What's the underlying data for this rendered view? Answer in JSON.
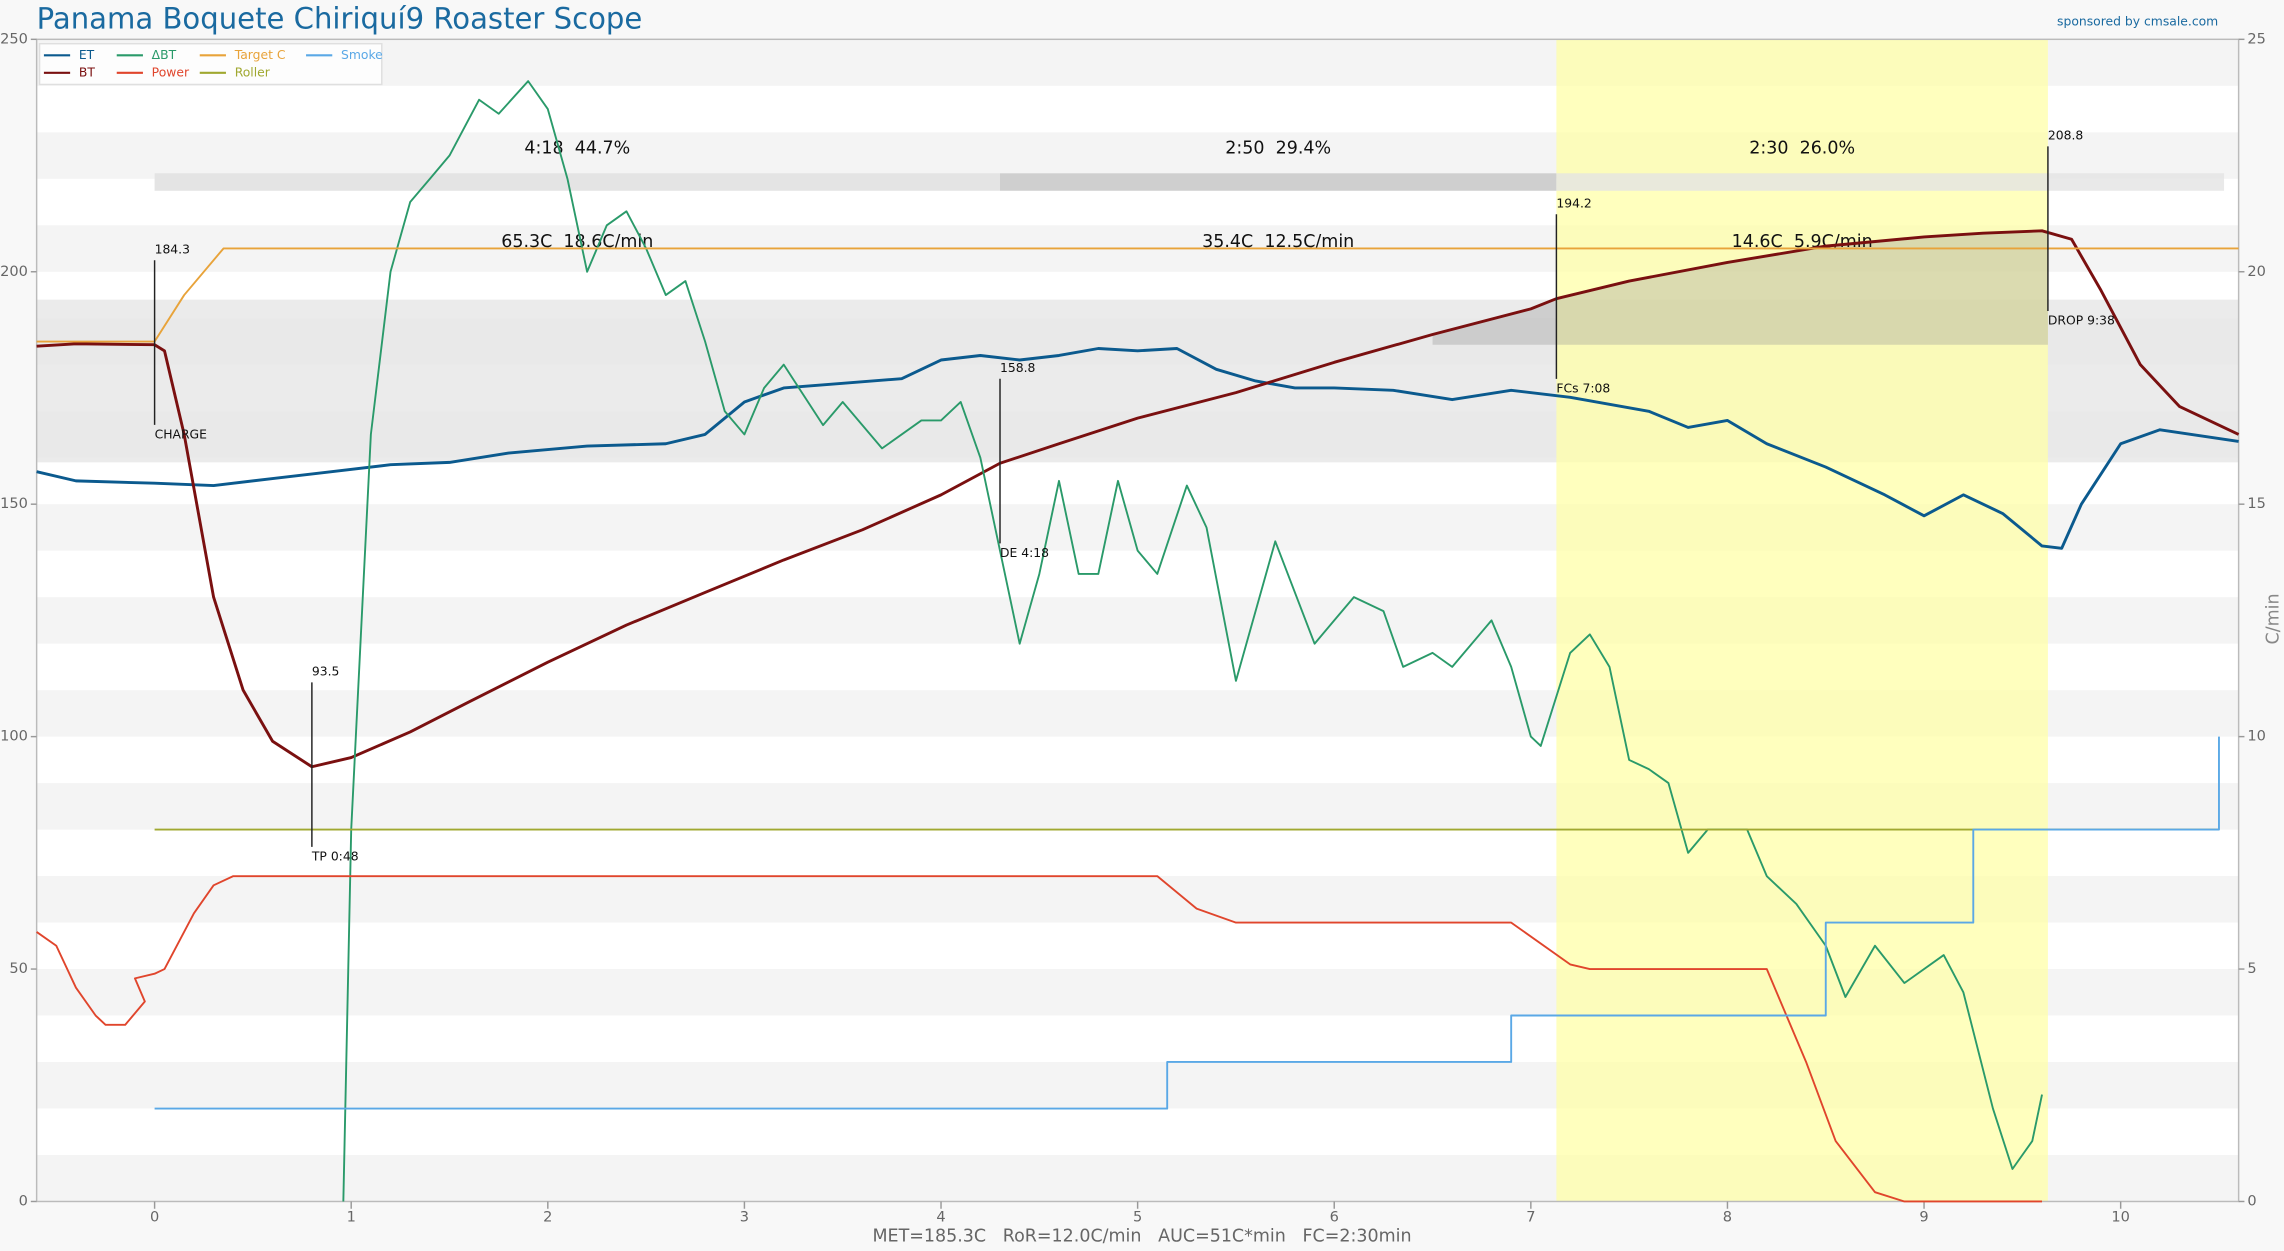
{
  "chart_data": {
    "type": "line",
    "title": "Panama Boquete Chiriquí9 Roaster Scope",
    "subtitle": "sponsored by cmsale.com",
    "footer": "MET=185.3C   RoR=12.0C/min   AUC=51C*min   FC=2:30min",
    "y2label": "C/min",
    "xlim": [
      -0.6,
      10.6
    ],
    "xticks": [
      0,
      1,
      2,
      3,
      4,
      5,
      6,
      7,
      8,
      9,
      10
    ],
    "ylim": [
      0,
      250
    ],
    "yticks": [
      0,
      50,
      100,
      150,
      200,
      250
    ],
    "y2lim": [
      0,
      25
    ],
    "y2ticks": [
      0,
      5,
      10,
      15,
      20,
      25
    ],
    "legend": "top-left",
    "shaded_range": [
      159,
      194
    ],
    "series": [
      {
        "name": "ET",
        "color": "#0b5a8e",
        "x": [
          -0.6,
          -0.4,
          0,
          0.3,
          0.6,
          0.9,
          1.2,
          1.5,
          1.8,
          2.2,
          2.6,
          2.8,
          3.0,
          3.2,
          3.5,
          3.8,
          4.0,
          4.2,
          4.4,
          4.6,
          4.8,
          5.0,
          5.2,
          5.4,
          5.6,
          5.8,
          6.0,
          6.3,
          6.6,
          6.9,
          7.2,
          7.4,
          7.6,
          7.8,
          8.0,
          8.2,
          8.5,
          8.8,
          9.0,
          9.2,
          9.4,
          9.6,
          9.7,
          9.8,
          10.0,
          10.2,
          10.6
        ],
        "values": [
          157,
          155,
          154.5,
          154,
          155.5,
          157,
          158.5,
          159,
          161,
          162.5,
          163,
          165,
          172,
          175,
          176,
          177,
          181,
          182,
          181,
          182,
          183.5,
          183,
          183.5,
          179,
          176.5,
          175,
          175,
          174.5,
          172.5,
          174.5,
          173,
          171.5,
          170,
          166.5,
          168,
          163,
          158,
          152,
          147.5,
          152,
          148,
          141,
          140.5,
          150,
          163,
          166,
          163.5
        ]
      },
      {
        "name": "BT",
        "color": "#7a1010",
        "x": [
          -0.6,
          -0.4,
          0,
          0.05,
          0.15,
          0.3,
          0.45,
          0.6,
          0.8,
          1.0,
          1.3,
          1.6,
          2.0,
          2.4,
          2.8,
          3.2,
          3.6,
          4.0,
          4.3,
          4.6,
          5.0,
          5.5,
          6.0,
          6.5,
          7.0,
          7.13,
          7.5,
          8.0,
          8.5,
          9.0,
          9.3,
          9.6,
          9.75,
          9.9,
          10.1,
          10.3,
          10.6
        ],
        "values": [
          184,
          184.5,
          184.3,
          183,
          165,
          130,
          110,
          99,
          93.5,
          95.5,
          101,
          107.5,
          116,
          124,
          131,
          138,
          144.5,
          152,
          158.8,
          163,
          168.5,
          174,
          180.5,
          186.5,
          192,
          194.2,
          198,
          202,
          205.5,
          207.5,
          208.3,
          208.8,
          207,
          196,
          180,
          171,
          165
        ]
      },
      {
        "name": "ΔBT",
        "color": "#2a9a6a",
        "axis": "y2",
        "x": [
          0.96,
          1.0,
          1.1,
          1.2,
          1.3,
          1.4,
          1.5,
          1.65,
          1.75,
          1.9,
          2.0,
          2.1,
          2.2,
          2.3,
          2.4,
          2.5,
          2.6,
          2.7,
          2.8,
          2.9,
          3.0,
          3.1,
          3.2,
          3.4,
          3.5,
          3.7,
          3.9,
          4.0,
          4.1,
          4.2,
          4.3,
          4.4,
          4.5,
          4.6,
          4.7,
          4.8,
          4.9,
          5.0,
          5.1,
          5.25,
          5.35,
          5.5,
          5.7,
          5.9,
          6.0,
          6.1,
          6.25,
          6.35,
          6.5,
          6.6,
          6.8,
          6.9,
          7.0,
          7.05,
          7.2,
          7.3,
          7.4,
          7.5,
          7.6,
          7.7,
          7.8,
          7.9,
          8.1,
          8.2,
          8.35,
          8.5,
          8.6,
          8.75,
          8.9,
          9.1,
          9.2,
          9.35,
          9.45,
          9.55,
          9.6
        ],
        "values": [
          0,
          8,
          16.5,
          20,
          21.5,
          22,
          22.5,
          23.7,
          23.4,
          24.1,
          23.5,
          22,
          20,
          21,
          21.3,
          20.5,
          19.5,
          19.8,
          18.5,
          17,
          16.5,
          17.5,
          18,
          16.7,
          17.2,
          16.2,
          16.8,
          16.8,
          17.2,
          16,
          14,
          12,
          13.5,
          15.5,
          13.5,
          13.5,
          15.5,
          14,
          13.5,
          15.4,
          14.5,
          11.2,
          14.2,
          12,
          12.5,
          13,
          12.7,
          11.5,
          11.8,
          11.5,
          12.5,
          11.5,
          10,
          9.8,
          11.8,
          12.2,
          11.5,
          9.5,
          9.3,
          9,
          7.5,
          8,
          8,
          7,
          6.4,
          5.5,
          4.4,
          5.5,
          4.7,
          5.3,
          4.5,
          2,
          0.7,
          1.3,
          2.3
        ]
      },
      {
        "name": "Power",
        "color": "#e0452c",
        "x": [
          -0.6,
          -0.5,
          -0.4,
          -0.3,
          -0.25,
          -0.15,
          -0.05,
          -0.1,
          0,
          0.05,
          0.2,
          0.3,
          0.4,
          5.1,
          5.3,
          5.5,
          6.9,
          7.2,
          7.3,
          8.2,
          8.4,
          8.55,
          8.75,
          8.9,
          9.6
        ],
        "values": [
          58,
          55,
          46,
          40,
          38,
          38,
          43,
          48,
          49,
          50,
          62,
          68,
          70,
          70,
          63,
          60,
          60,
          51,
          50,
          50,
          30,
          13,
          2,
          0,
          0
        ]
      },
      {
        "name": "Target C",
        "color": "#e8a33a",
        "x": [
          -0.6,
          0,
          0.15,
          0.35,
          10.6
        ],
        "values": [
          185,
          185,
          195,
          205,
          205
        ]
      },
      {
        "name": "Roller",
        "color": "#a0a830",
        "x": [
          0,
          10.5
        ],
        "values": [
          80,
          80
        ]
      },
      {
        "name": "Smoke",
        "color": "#5aa8e6",
        "x": [
          0,
          5.15,
          5.15,
          6.9,
          6.9,
          8.5,
          8.5,
          9.25,
          9.25,
          10.5,
          10.5
        ],
        "values": [
          20,
          20,
          30,
          30,
          40,
          40,
          60,
          60,
          80,
          80,
          100
        ]
      }
    ],
    "events": [
      {
        "x": 0,
        "value": 184.3,
        "label": "CHARGE"
      },
      {
        "x": 0.8,
        "value": 93.5,
        "label": "TP 0:48"
      },
      {
        "x": 4.3,
        "value": 158.8,
        "label": "DE 4:18"
      },
      {
        "x": 7.13,
        "value": 194.2,
        "label": "FCs 7:08"
      },
      {
        "x": 9.63,
        "value": 208.8,
        "label": "DROP 9:38"
      }
    ],
    "phases": [
      {
        "time": "4:18  44.7%",
        "delta": "65.3C  18.6C/min"
      },
      {
        "time": "2:50  29.4%",
        "delta": "35.4C  12.5C/min"
      },
      {
        "time": "2:30  26.0%",
        "delta": "14.6C  5.9C/min"
      }
    ]
  }
}
